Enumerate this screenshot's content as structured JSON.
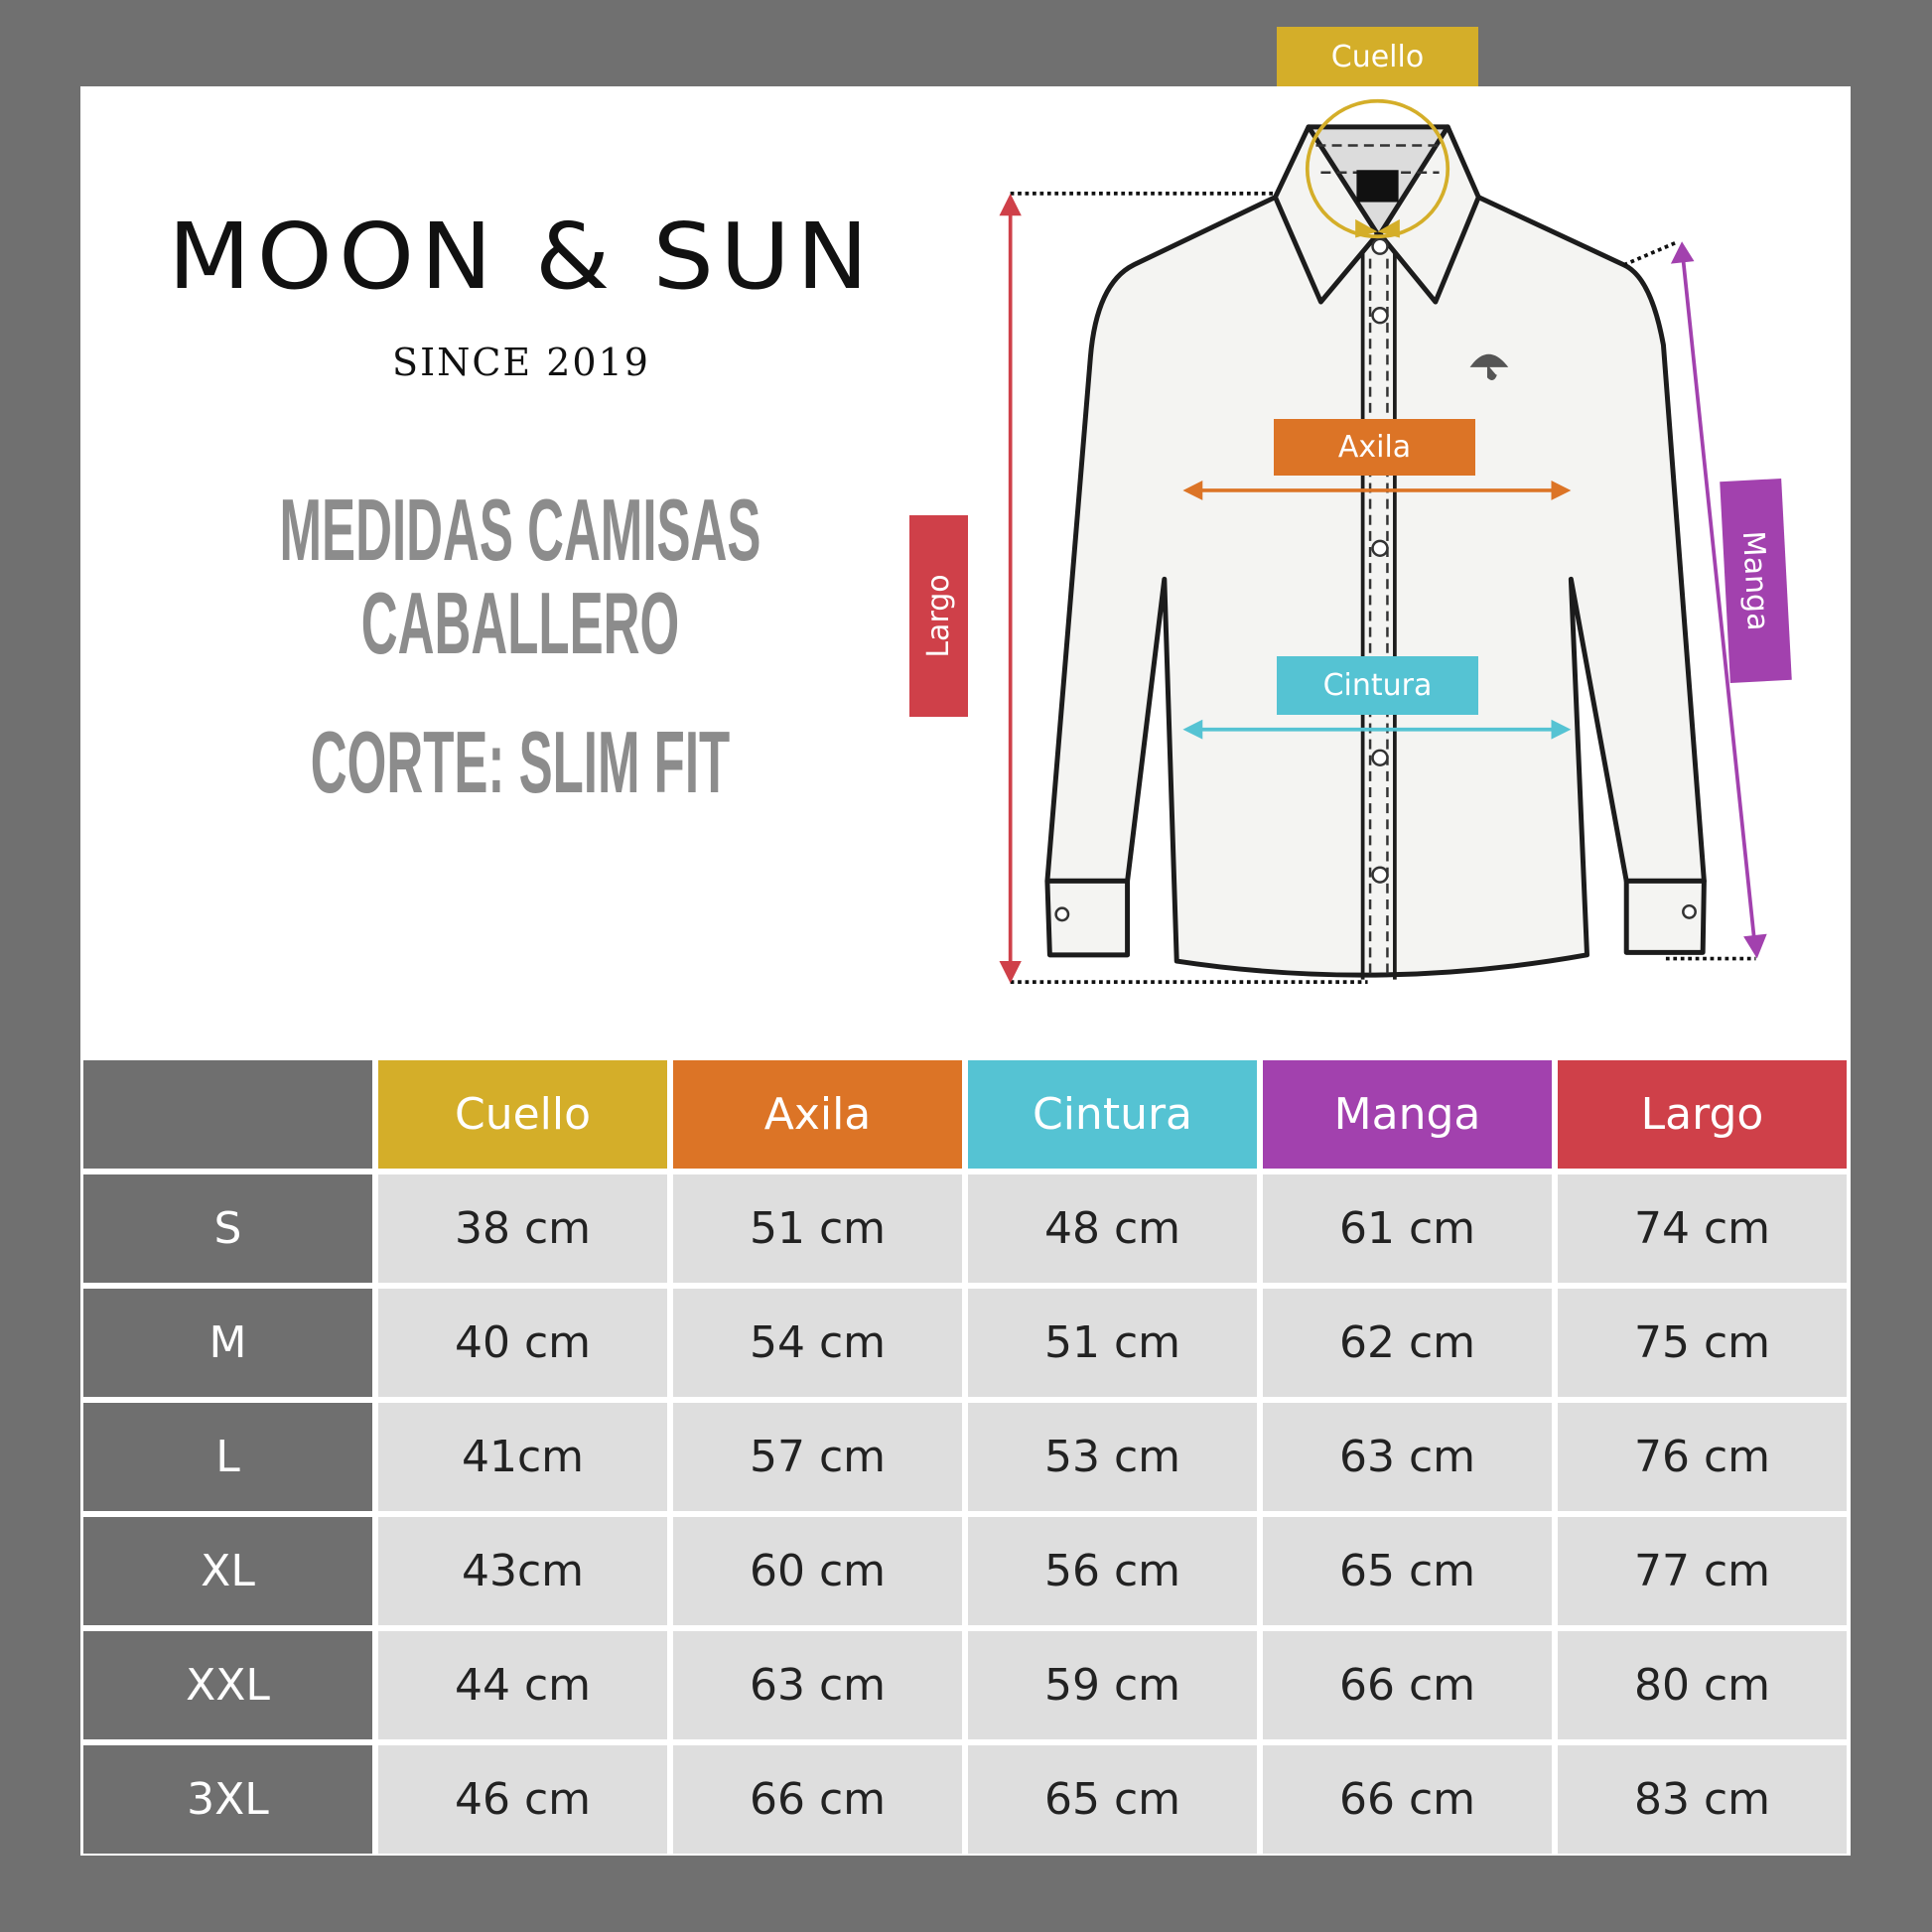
{
  "brand": {
    "name": "MOON & SUN",
    "since": "SINCE 2019"
  },
  "title": {
    "line1": "MEDIDAS CAMISAS",
    "line2": "CABALLERO",
    "cut": "CORTE: SLIM FIT"
  },
  "diagram": {
    "labels": {
      "cuello": "Cuello",
      "axila": "Axila",
      "cintura": "Cintura",
      "manga": "Manga",
      "largo": "Largo"
    }
  },
  "colors": {
    "cuello": "#d4ae29",
    "axila": "#dc7426",
    "cintura": "#55c3d3",
    "manga": "#a241ae",
    "largo": "#cf4049",
    "size_cell": "#6f6f6f",
    "value_cell": "#dedede"
  },
  "table": {
    "headers": [
      "",
      "Cuello",
      "Axila",
      "Cintura",
      "Manga",
      "Largo"
    ],
    "rows": [
      {
        "size": "S",
        "values": [
          "38 cm",
          "51 cm",
          "48 cm",
          "61 cm",
          "74 cm"
        ]
      },
      {
        "size": "M",
        "values": [
          "40 cm",
          "54 cm",
          "51 cm",
          "62 cm",
          "75 cm"
        ]
      },
      {
        "size": "L",
        "values": [
          "41cm",
          "57 cm",
          "53 cm",
          "63 cm",
          "76 cm"
        ]
      },
      {
        "size": "XL",
        "values": [
          "43cm",
          "60 cm",
          "56 cm",
          "65 cm",
          "77 cm"
        ]
      },
      {
        "size": "XXL",
        "values": [
          "44 cm",
          "63 cm",
          "59 cm",
          "66 cm",
          "80 cm"
        ]
      },
      {
        "size": "3XL",
        "values": [
          "46 cm",
          "66 cm",
          "65 cm",
          "66 cm",
          "83 cm"
        ]
      }
    ]
  }
}
